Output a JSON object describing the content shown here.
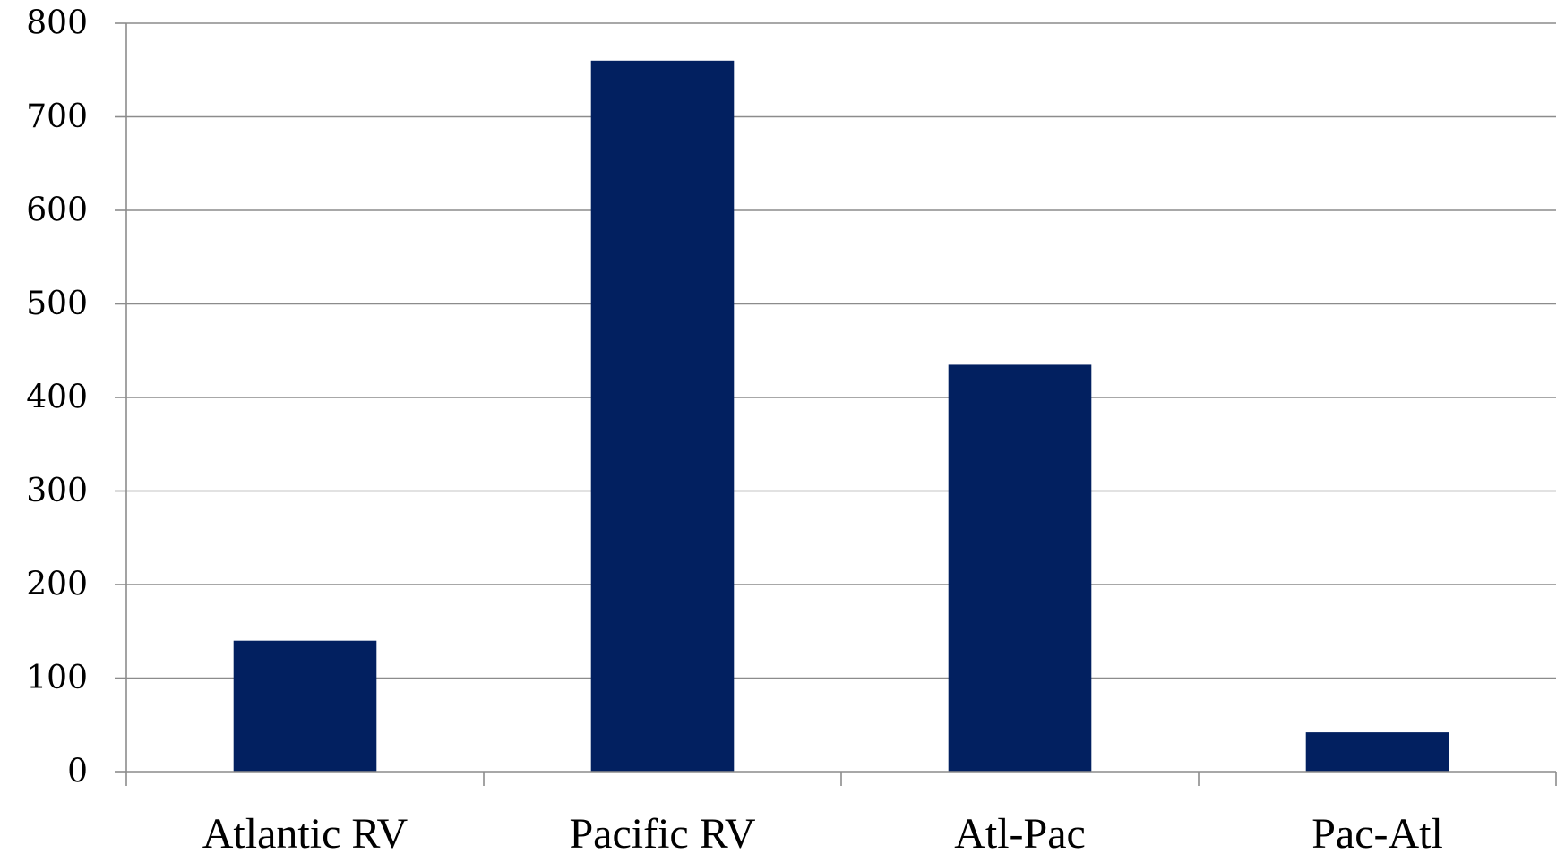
{
  "chart_data": {
    "type": "bar",
    "categories": [
      "Atlantic RV",
      "Pacific RV",
      "Atl-Pac",
      "Pac-Atl"
    ],
    "values": [
      140,
      760,
      435,
      42
    ],
    "ylim": [
      0,
      800
    ],
    "yticks": [
      0,
      100,
      200,
      300,
      400,
      500,
      600,
      700,
      800
    ],
    "grid": true,
    "bar_color": "#022060",
    "grid_color": "#8c8c8c"
  }
}
